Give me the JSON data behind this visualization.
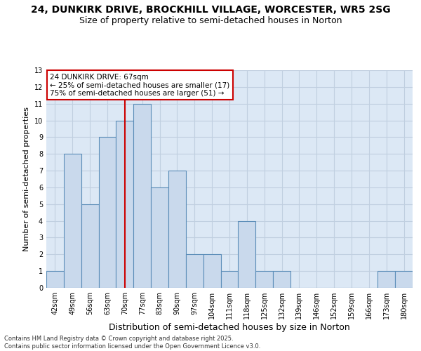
{
  "title1": "24, DUNKIRK DRIVE, BROCKHILL VILLAGE, WORCESTER, WR5 2SG",
  "title2": "Size of property relative to semi-detached houses in Norton",
  "xlabel": "Distribution of semi-detached houses by size in Norton",
  "ylabel": "Number of semi-detached properties",
  "categories": [
    "42sqm",
    "49sqm",
    "56sqm",
    "63sqm",
    "70sqm",
    "77sqm",
    "83sqm",
    "90sqm",
    "97sqm",
    "104sqm",
    "111sqm",
    "118sqm",
    "125sqm",
    "132sqm",
    "139sqm",
    "146sqm",
    "152sqm",
    "159sqm",
    "166sqm",
    "173sqm",
    "180sqm"
  ],
  "values": [
    1,
    8,
    5,
    9,
    10,
    11,
    6,
    7,
    2,
    2,
    1,
    4,
    1,
    1,
    0,
    0,
    0,
    0,
    0,
    1,
    1
  ],
  "bar_color": "#c9d9ec",
  "bar_edge_color": "#5b8db8",
  "vline_x": 4,
  "vline_color": "#cc0000",
  "annotation_box_text": "24 DUNKIRK DRIVE: 67sqm\n← 25% of semi-detached houses are smaller (17)\n75% of semi-detached houses are larger (51) →",
  "annotation_box_color": "#cc0000",
  "annotation_box_bg": "#ffffff",
  "ylim": [
    0,
    13
  ],
  "yticks": [
    0,
    1,
    2,
    3,
    4,
    5,
    6,
    7,
    8,
    9,
    10,
    11,
    12,
    13
  ],
  "grid_color": "#c0cfe0",
  "bg_color": "#dce8f5",
  "footer": "Contains HM Land Registry data © Crown copyright and database right 2025.\nContains public sector information licensed under the Open Government Licence v3.0.",
  "title_fontsize": 10,
  "subtitle_fontsize": 9,
  "tick_fontsize": 7,
  "ylabel_fontsize": 8,
  "xlabel_fontsize": 9,
  "annotation_fontsize": 7.5
}
